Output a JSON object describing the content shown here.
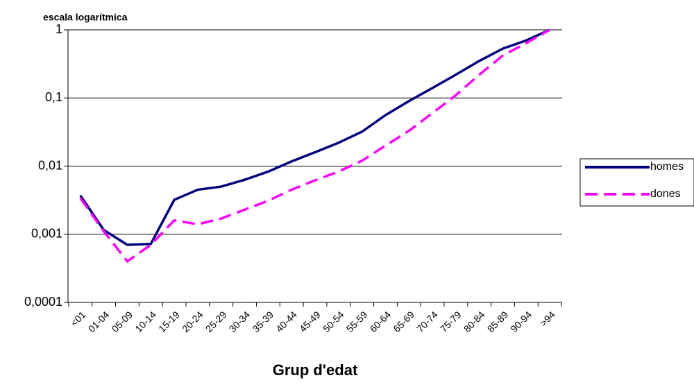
{
  "chart_data": {
    "type": "line",
    "y_axis_label": "escala logarítmica",
    "x_axis_label": "Grup d'edat",
    "categories": [
      "<01",
      "01-04",
      "05-09",
      "10-14",
      "15-19",
      "20-24",
      "25-29",
      "30-34",
      "35-39",
      "40-44",
      "45-49",
      "50-54",
      "55-59",
      "60-64",
      "65-69",
      "70-74",
      "75-79",
      "80-84",
      "85-89",
      "90-94",
      ">94"
    ],
    "series": [
      {
        "name": "homes",
        "color": "#000080",
        "style": "solid",
        "values": [
          0.0037,
          0.00115,
          0.0007,
          0.00072,
          0.0032,
          0.0045,
          0.005,
          0.0063,
          0.0083,
          0.0117,
          0.016,
          0.022,
          0.032,
          0.056,
          0.09,
          0.14,
          0.22,
          0.35,
          0.53,
          0.7,
          1
        ]
      },
      {
        "name": "dones",
        "color": "#ff00ff",
        "style": "dashed",
        "values": [
          0.0034,
          0.0011,
          0.0004,
          0.0007,
          0.0016,
          0.0014,
          0.0017,
          0.0023,
          0.0031,
          0.0045,
          0.0062,
          0.0083,
          0.012,
          0.02,
          0.033,
          0.06,
          0.11,
          0.22,
          0.42,
          0.64,
          1
        ]
      }
    ],
    "log_y": true,
    "ylim": [
      0.0001,
      1
    ],
    "yticks": [
      {
        "value": 0.0001,
        "label": "0,0001"
      },
      {
        "value": 0.001,
        "label": "0,001"
      },
      {
        "value": 0.01,
        "label": "0,01"
      },
      {
        "value": 0.1,
        "label": "0,1"
      },
      1
    ],
    "grid": true,
    "legend": "right"
  }
}
